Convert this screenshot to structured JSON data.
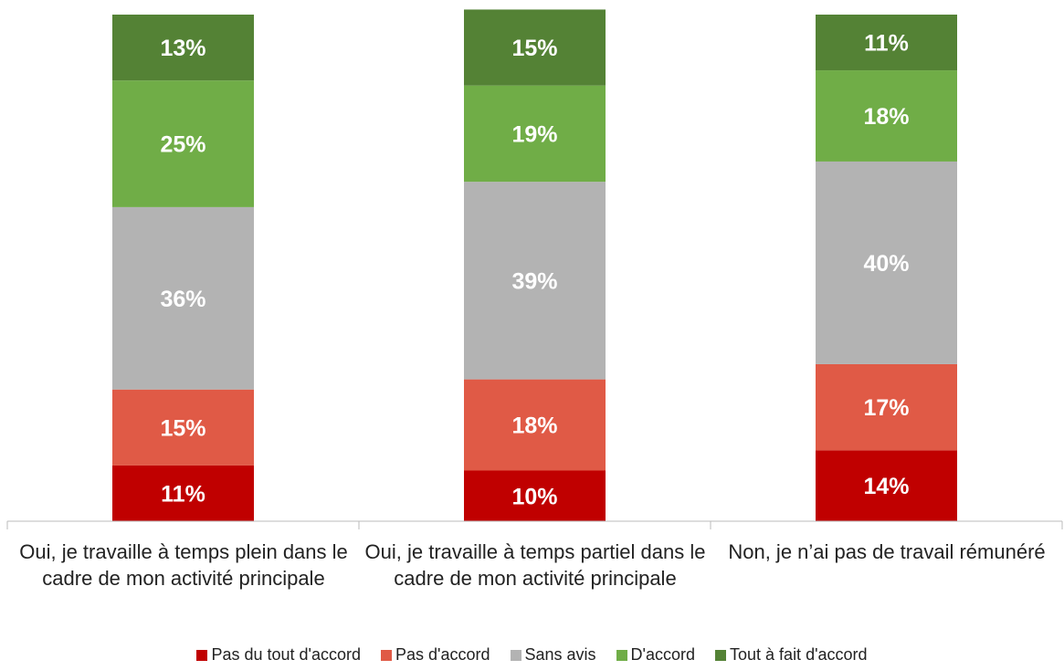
{
  "chart_data": {
    "type": "stacked_bar",
    "categories": [
      "Oui, je travaille à temps plein dans le cadre de mon activité principale",
      "Oui, je travaille à temps partiel dans le cadre de mon activité principale",
      "Non, je n’ai pas de travail rémunéré"
    ],
    "series": [
      {
        "name": "Pas du tout d'accord",
        "color": "#c00000",
        "values": [
          11,
          10,
          14
        ],
        "value_labels": [
          "11%",
          "10%",
          "14%"
        ]
      },
      {
        "name": "Pas d'accord",
        "color": "#e05a46",
        "values": [
          15,
          18,
          17
        ],
        "value_labels": [
          "15%",
          "18%",
          "17%"
        ]
      },
      {
        "name": "Sans avis",
        "color": "#b3b3b3",
        "values": [
          36,
          39,
          40
        ],
        "value_labels": [
          "36%",
          "39%",
          "40%"
        ]
      },
      {
        "name": "D'accord",
        "color": "#70ad47",
        "values": [
          25,
          19,
          18
        ],
        "value_labels": [
          "25%",
          "19%",
          "18%"
        ]
      },
      {
        "name": "Tout à fait d'accord",
        "color": "#548235",
        "values": [
          13,
          15,
          11
        ],
        "value_labels": [
          "13%",
          "15%",
          "11%"
        ]
      }
    ],
    "ylim": [
      0,
      100
    ]
  }
}
